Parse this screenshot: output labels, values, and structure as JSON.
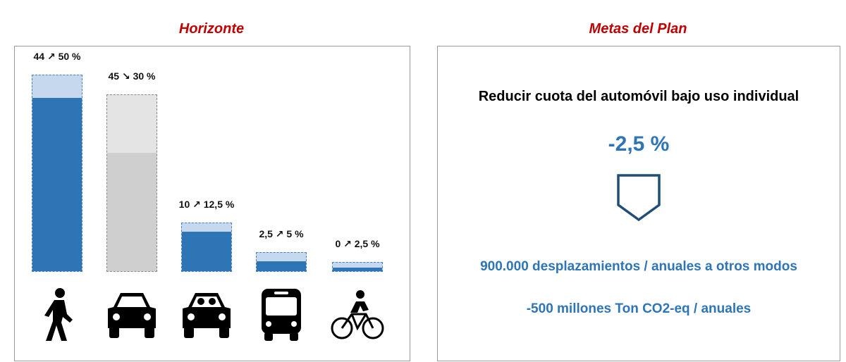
{
  "left_title": "Horizonte",
  "right_title": "Metas del Plan",
  "chart_data": {
    "type": "bar",
    "categories": [
      "Peatón",
      "Automóvil individual",
      "Automóvil compartido",
      "Autobús",
      "Bicicleta"
    ],
    "series": [
      {
        "values": [
          44,
          45,
          10,
          2.5,
          0
        ]
      },
      {
        "values": [
          50,
          30,
          12.5,
          5,
          2.5
        ]
      }
    ],
    "labels": [
      "44 ↗ 50 %",
      "45 ↘ 30 %",
      "10 ↗ 12,5 %",
      "2,5 ↗ 5 %",
      "0 ↗ 2,5 %"
    ],
    "icons": [
      "pedestrian-icon",
      "car-icon",
      "shared-car-icon",
      "bus-icon",
      "bicycle-icon"
    ],
    "ylim": [
      0,
      50
    ],
    "colors": {
      "increase": "#2e75b6",
      "increase_light": "#c5d8ee",
      "decrease": "#cfcfcf",
      "decrease_light": "#e4e4e4"
    }
  },
  "goals": {
    "title": "Reducir cuota del automóvil bajo uso individual",
    "percentage": "-2,5 %",
    "icon": "chevron-down-icon",
    "line1": "900.000 desplazamientos / anuales a otros modos",
    "line2": "-500 millones Ton CO2-eq / anuales"
  }
}
